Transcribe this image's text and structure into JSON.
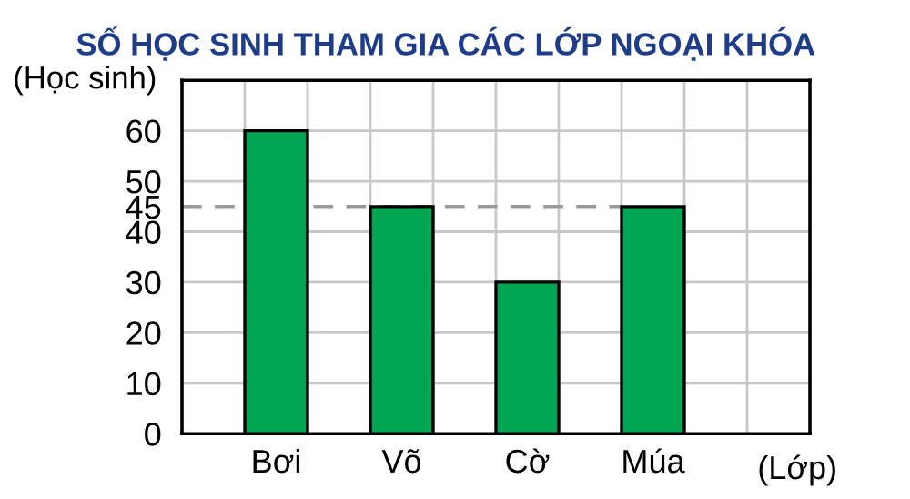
{
  "chart_data": {
    "type": "bar",
    "title": "SỐ HỌC SINH THAM GIA CÁC LỚP NGOẠI KHÓA",
    "xlabel": "(Lớp)",
    "ylabel": "(Học sinh)",
    "categories": [
      "Bơi",
      "Võ",
      "Cờ",
      "Múa"
    ],
    "values": [
      60,
      45,
      30,
      45
    ],
    "color": "#00a651",
    "ylim": [
      0,
      70
    ],
    "yticks": [
      0,
      10,
      20,
      30,
      40,
      45,
      50,
      60
    ],
    "grid": true,
    "ref_lines": [
      {
        "axis": "y",
        "value": 45,
        "line_style": "dashed",
        "color": "#999999"
      }
    ]
  }
}
